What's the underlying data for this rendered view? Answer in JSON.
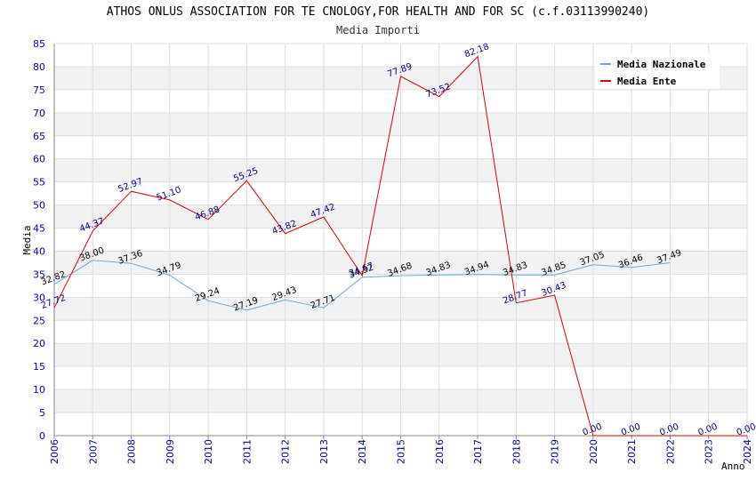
{
  "chart_data": {
    "type": "line",
    "title": "ATHOS ONLUS ASSOCIATION FOR TE CNOLOGY,FOR HEALTH AND FOR SC (c.f.03113990240)",
    "subtitle": "Media Importi",
    "xlabel": "Anno",
    "ylabel": "Media",
    "ylim": [
      0,
      85
    ],
    "yticks": [
      0,
      5,
      10,
      15,
      20,
      25,
      30,
      35,
      40,
      45,
      50,
      55,
      60,
      65,
      70,
      75,
      80,
      85
    ],
    "x": [
      2006,
      2007,
      2008,
      2009,
      2010,
      2011,
      2012,
      2013,
      2014,
      2015,
      2016,
      2017,
      2018,
      2019,
      2020,
      2021,
      2022,
      2023,
      2024
    ],
    "grid": true,
    "legend_position": "top-right",
    "series": [
      {
        "name": "Media Nazionale",
        "color": "#66aadd",
        "x": [
          2006,
          2007,
          2008,
          2009,
          2010,
          2011,
          2012,
          2013,
          2014,
          2015,
          2016,
          2017,
          2018,
          2019,
          2020,
          2021,
          2022
        ],
        "values": [
          32.82,
          38.0,
          37.36,
          34.79,
          29.24,
          27.19,
          29.43,
          27.71,
          34.32,
          34.68,
          34.83,
          34.94,
          34.83,
          34.85,
          37.05,
          36.46,
          37.49
        ],
        "labels": [
          "32.82",
          "38.00",
          "37.36",
          "34.79",
          "29.24",
          "27.19",
          "29.43",
          "27.71",
          "34.32",
          "34.68",
          "34.83",
          "34.94",
          "34.83",
          "34.85",
          "37.05",
          "36.46",
          "37.49"
        ]
      },
      {
        "name": "Media Ente",
        "color": "#dd0000",
        "x": [
          2006,
          2007,
          2008,
          2009,
          2010,
          2011,
          2012,
          2013,
          2014,
          2015,
          2016,
          2017,
          2018,
          2019,
          2020,
          2021,
          2022,
          2023,
          2024
        ],
        "values": [
          27.72,
          44.37,
          52.97,
          51.1,
          46.88,
          55.25,
          43.82,
          47.42,
          34.67,
          77.89,
          73.52,
          82.18,
          28.77,
          30.43,
          0.0,
          0.0,
          0.0,
          0.0,
          0.0
        ],
        "labels": [
          "27.72",
          "44.37",
          "52.97",
          "51.10",
          "46.88",
          "55.25",
          "43.82",
          "47.42",
          "34.67",
          "77.89",
          "73.52",
          "82.18",
          "28.77",
          "30.43",
          "0.00",
          "0.00",
          "0.00",
          "0.00",
          "0.00"
        ]
      }
    ]
  }
}
